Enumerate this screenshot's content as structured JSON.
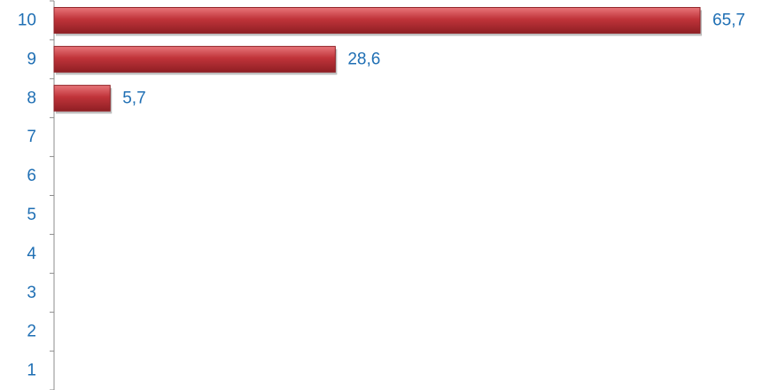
{
  "chart_data": {
    "type": "bar",
    "orientation": "horizontal",
    "categories": [
      "10",
      "9",
      "8",
      "7",
      "6",
      "5",
      "4",
      "3",
      "2",
      "1"
    ],
    "values": [
      65.7,
      28.6,
      5.7,
      null,
      null,
      null,
      null,
      null,
      null,
      null
    ],
    "value_labels": [
      "65,7",
      "28,6",
      "5,7",
      "",
      "",
      "",
      "",
      "",
      "",
      ""
    ],
    "title": "",
    "xlabel": "",
    "ylabel": "",
    "xlim": [
      0,
      65.7
    ],
    "grid": false,
    "legend": "none"
  },
  "colors": {
    "bar": "#c0343a",
    "bar_light": "#e8767a",
    "bar_dark": "#8f1f24",
    "label": "#1f6fb4",
    "axis": "#8c8c8c"
  }
}
